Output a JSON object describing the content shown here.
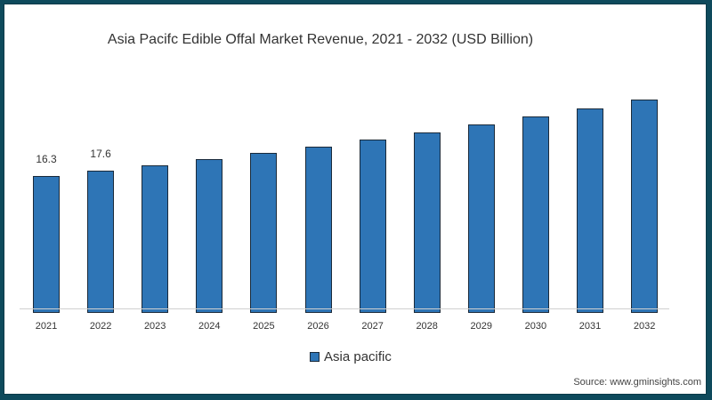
{
  "title": "Asia Pacifc Edible Offal Market Revenue, 2021 - 2032 (USD Billion)",
  "legend": {
    "label": "Asia pacific",
    "color": "#2e75b6"
  },
  "source": "Source: www.gminsights.com",
  "chart_data": {
    "type": "bar",
    "title": "Asia Pacifc Edible Offal Market Revenue, 2021 - 2032 (USD Billion)",
    "xlabel": "",
    "ylabel": "",
    "categories": [
      "2021",
      "2022",
      "2023",
      "2024",
      "2025",
      "2026",
      "2027",
      "2028",
      "2029",
      "2030",
      "2031",
      "2032"
    ],
    "series": [
      {
        "name": "Asia pacific",
        "color": "#2e75b6",
        "values": [
          16.3,
          17.6,
          18.9,
          20.4,
          21.9,
          23.4,
          25.2,
          26.9,
          28.9,
          30.8,
          32.8,
          34.9
        ]
      }
    ],
    "data_labels": {
      "2021": "16.3",
      "2022": "17.6"
    },
    "legend_position": "bottom",
    "grid": false,
    "y_axis_visible": false
  }
}
